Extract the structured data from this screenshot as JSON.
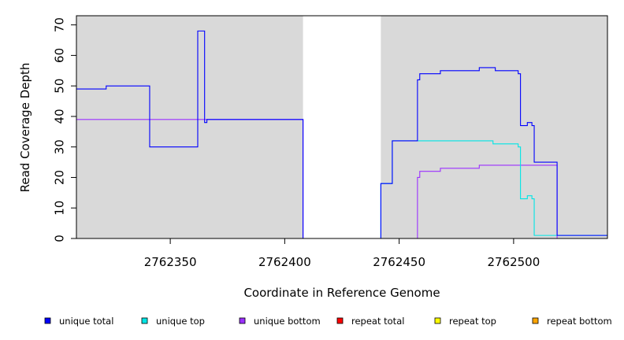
{
  "chart_data": {
    "type": "line",
    "title": "",
    "xlabel": "Coordinate in Reference Genome",
    "ylabel": "Read Coverage Depth",
    "xlim": [
      2762309,
      2762541
    ],
    "ylim": [
      0,
      73
    ],
    "xticks": [
      2762350,
      2762400,
      2762450,
      2762500
    ],
    "yticks": [
      0,
      10,
      20,
      30,
      40,
      50,
      60,
      70
    ],
    "grid": false,
    "legend_position": "bottom",
    "shaded_regions": [
      {
        "start": 2762309,
        "end": 2762408,
        "color": "#d9d9d9"
      },
      {
        "start": 2762442,
        "end": 2762541,
        "color": "#d9d9d9"
      }
    ],
    "series": [
      {
        "name": "unique total",
        "color": "#0000ff",
        "x": [
          2762309,
          2762322,
          2762341,
          2762362,
          2762365,
          2762366,
          2762408,
          2762442,
          2762447,
          2762458,
          2762459,
          2762468,
          2762485,
          2762492,
          2762502,
          2762503,
          2762506,
          2762508,
          2762509,
          2762519,
          2762541
        ],
        "y": [
          49,
          50,
          30,
          68,
          38,
          39,
          0,
          18,
          32,
          52,
          54,
          55,
          56,
          55,
          54,
          37,
          38,
          37,
          25,
          1,
          1
        ]
      },
      {
        "name": "unique top",
        "color": "#00e5e5",
        "x": [
          2762309,
          2762408,
          2762442,
          2762447,
          2762491,
          2762502,
          2762503,
          2762506,
          2762508,
          2762509,
          2762541
        ],
        "y": [
          0,
          0,
          18,
          32,
          31,
          30,
          13,
          14,
          13,
          1,
          1
        ]
      },
      {
        "name": "unique bottom",
        "color": "#9b30ff",
        "x": [
          2762309,
          2762408,
          2762458,
          2762459,
          2762468,
          2762485,
          2762519,
          2762541
        ],
        "y": [
          39,
          0,
          20,
          22,
          23,
          24,
          0,
          0
        ]
      },
      {
        "name": "repeat total",
        "color": "#ff0000",
        "x": [
          2762309,
          2762541
        ],
        "y": [
          0,
          0
        ]
      },
      {
        "name": "repeat top",
        "color": "#ffff00",
        "x": [
          2762309,
          2762541
        ],
        "y": [
          0,
          0
        ]
      },
      {
        "name": "repeat bottom",
        "color": "#ffa500",
        "x": [
          2762309,
          2762541
        ],
        "y": [
          0,
          0
        ]
      }
    ]
  }
}
